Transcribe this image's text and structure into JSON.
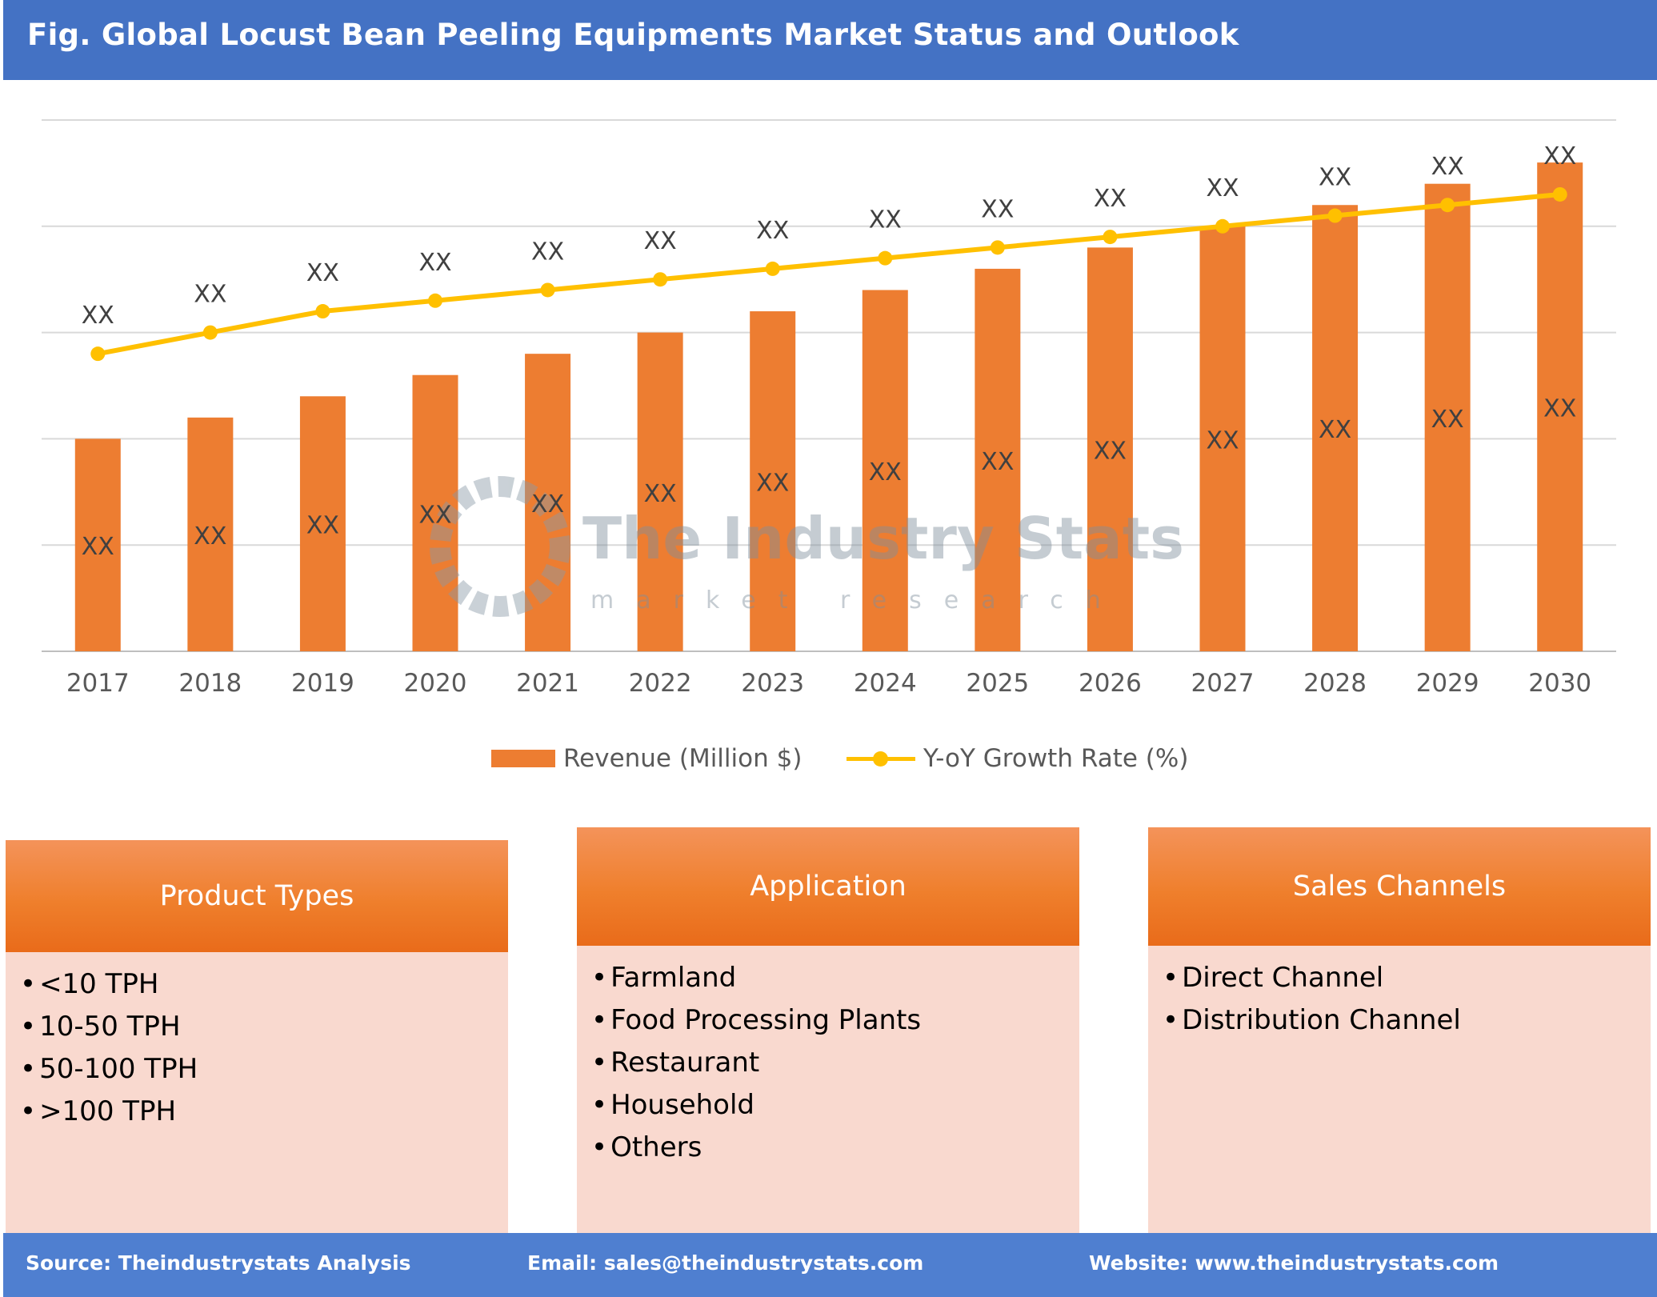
{
  "title": "Fig. Global Locust Bean Peeling Equipments Market Status and Outlook",
  "chart_data": {
    "type": "bar",
    "categories": [
      "2017",
      "2018",
      "2019",
      "2020",
      "2021",
      "2022",
      "2023",
      "2024",
      "2025",
      "2026",
      "2027",
      "2028",
      "2029",
      "2030"
    ],
    "series": [
      {
        "name": "Revenue (Million $)",
        "type": "bar",
        "color": "#ed7d31",
        "values": [
          40,
          44,
          48,
          52,
          56,
          60,
          64,
          68,
          72,
          76,
          80,
          84,
          88,
          92
        ],
        "labels": [
          "XX",
          "XX",
          "XX",
          "XX",
          "XX",
          "XX",
          "XX",
          "XX",
          "XX",
          "XX",
          "XX",
          "XX",
          "XX",
          "XX"
        ]
      },
      {
        "name": "Y-oY Growth Rate (%)",
        "type": "line",
        "color": "#ffc000",
        "values": [
          56,
          60,
          64,
          66,
          68,
          70,
          72,
          74,
          76,
          78,
          80,
          82,
          84,
          86
        ],
        "labels": [
          "XX",
          "XX",
          "XX",
          "XX",
          "XX",
          "XX",
          "XX",
          "XX",
          "XX",
          "XX",
          "XX",
          "XX",
          "XX",
          "XX"
        ]
      }
    ],
    "ylim": [
      0,
      100
    ],
    "grid": true,
    "legend": "bottom-center"
  },
  "watermark": {
    "main": "The Industry Stats",
    "sub": "market research"
  },
  "legend": {
    "revenue": "Revenue (Million $)",
    "growth": "Y-oY Growth Rate (%)"
  },
  "boxes": [
    {
      "title": "Product Types",
      "items": [
        "<10 TPH",
        "10-50 TPH",
        "50-100 TPH",
        ">100 TPH"
      ]
    },
    {
      "title": "Application",
      "items": [
        "Farmland",
        "Food Processing Plants",
        "Restaurant",
        "Household",
        "Others"
      ]
    },
    {
      "title": "Sales Channels",
      "items": [
        "Direct Channel",
        "Distribution Channel"
      ]
    }
  ],
  "footer": {
    "source": "Source: Theindustrystats Analysis",
    "email": "Email: sales@theindustrystats.com",
    "website": "Website: www.theindustrystats.com"
  }
}
